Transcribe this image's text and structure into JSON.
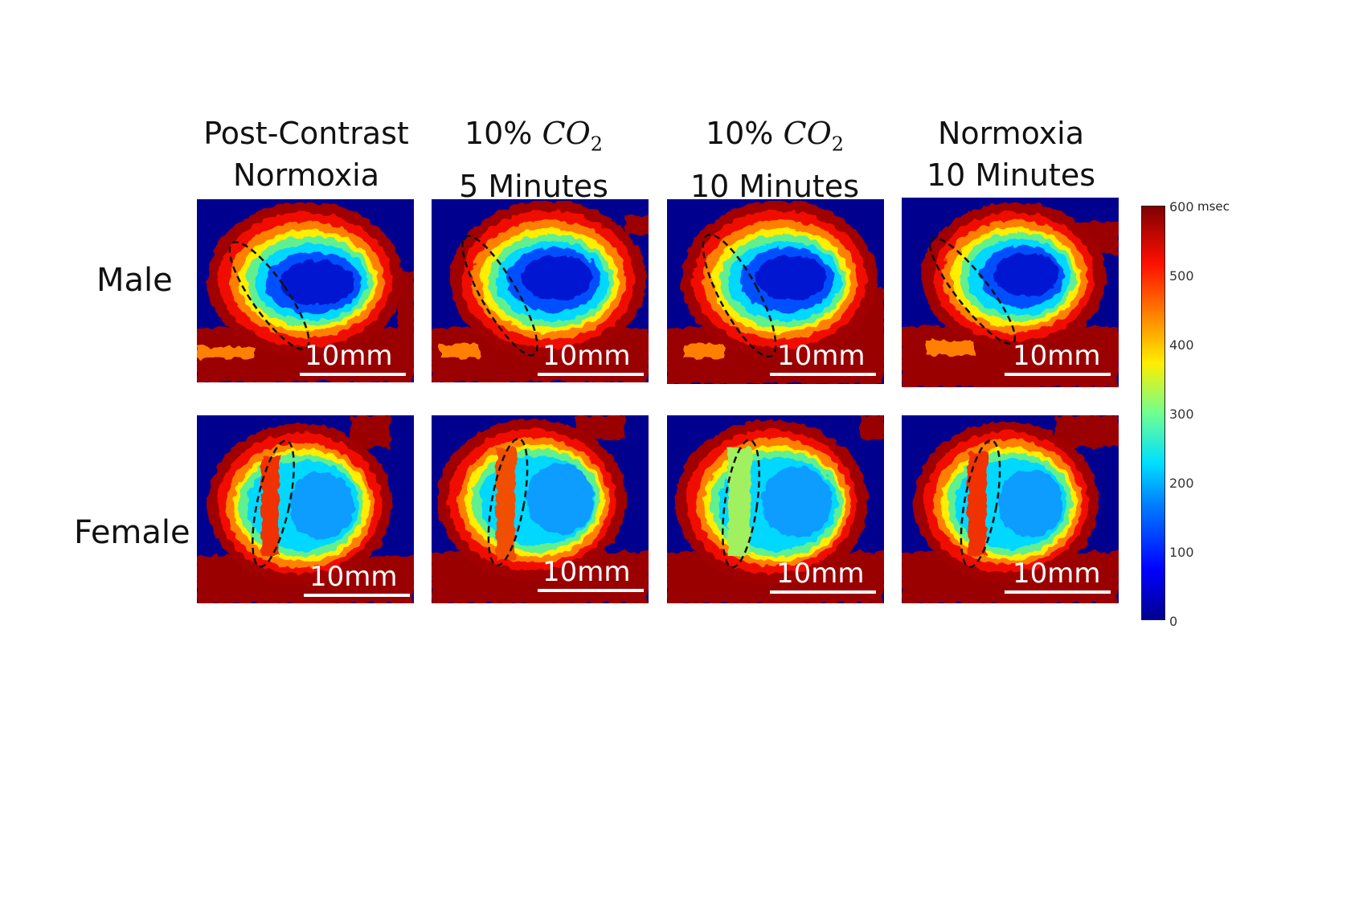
{
  "figure": {
    "columns": [
      {
        "line1": "Post-Contrast",
        "line2": "Normoxia"
      },
      {
        "pct": "10%",
        "chem": "CO",
        "sub": "2",
        "line2": "5 Minutes"
      },
      {
        "pct": "10%",
        "chem": "CO",
        "sub": "2",
        "line2": "10 Minutes"
      },
      {
        "line1": "Normoxia",
        "line2": "10 Minutes"
      }
    ],
    "rows": [
      {
        "label": "Male"
      },
      {
        "label": "Female"
      }
    ],
    "scale_bar_label": "10mm",
    "colorbar": {
      "unit": "msec",
      "ticks": [
        "600",
        "500",
        "400",
        "300",
        "200",
        "100",
        "0"
      ],
      "colors": {
        "dark_blue": "#00008f",
        "blue": "#0050ff",
        "cyan": "#00d8ff",
        "green": "#60f090",
        "yellow": "#ffee00",
        "orange": "#ff8000",
        "red": "#f01000",
        "dark_red": "#9a0000"
      }
    }
  }
}
